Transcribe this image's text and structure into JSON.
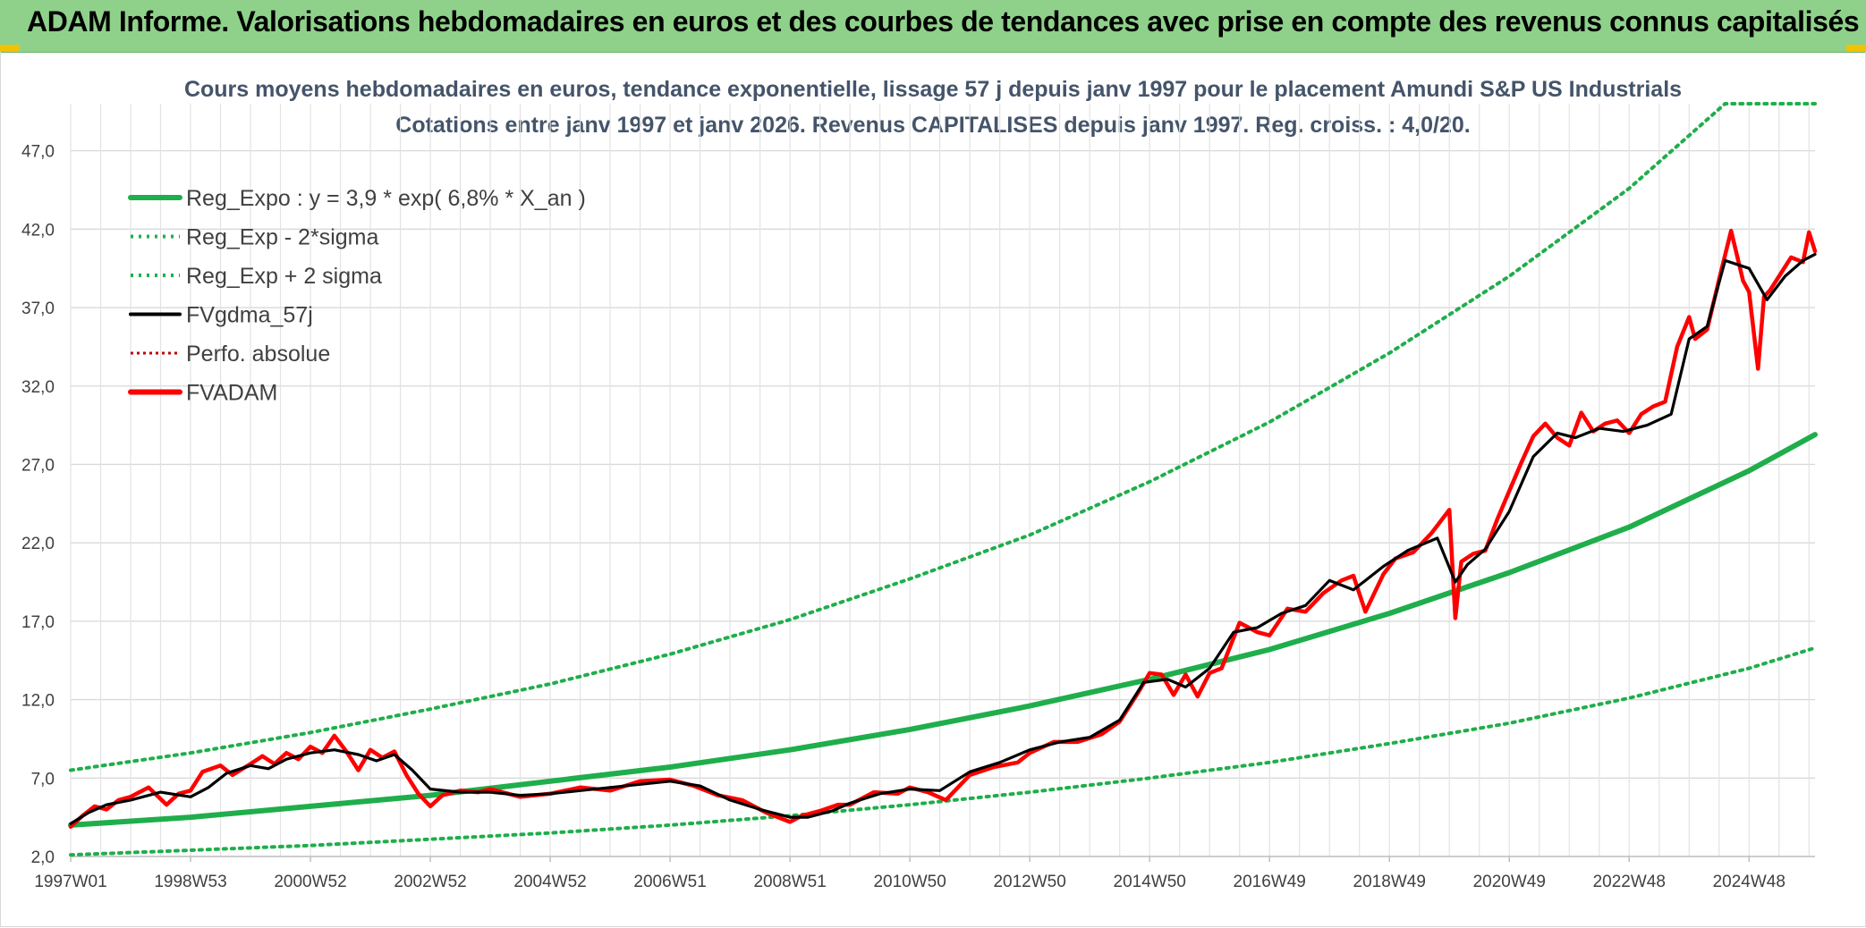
{
  "header": {
    "title": "ADAM Informe. Valorisations hebdomadaires en euros et des courbes de tendances avec prise en compte des revenus connus capitalisés"
  },
  "colors": {
    "header_bg": "#8fd18a",
    "reg_expo": "#1fae4b",
    "fvgdma": "#000000",
    "fvadam": "#ff0000",
    "perfo": "#c00000"
  },
  "chart_data": {
    "type": "line",
    "title_line1": "Cours moyens hebdomadaires en euros, tendance exponentielle, lissage 57 j depuis janv 1997 pour le placement Amundi S&P US Industrials",
    "title_line2": "Cotations entre janv 1997 et janv 2026. Revenus CAPITALISES depuis janv 1997. Reg. croiss. : 4,0/20.",
    "ylim": [
      2,
      50
    ],
    "y_ticks": [
      "2,0",
      "7,0",
      "12,0",
      "17,0",
      "22,0",
      "27,0",
      "32,0",
      "37,0",
      "42,0",
      "47,0"
    ],
    "y_tick_values": [
      2,
      7,
      12,
      17,
      22,
      27,
      32,
      37,
      42,
      47
    ],
    "x_range": [
      1997.0,
      2026.1
    ],
    "x_ticks": [
      "1997W01",
      "1998W53",
      "2000W52",
      "2002W52",
      "2004W52",
      "2006W51",
      "2008W51",
      "2010W50",
      "2012W50",
      "2014W50",
      "2016W49",
      "2018W49",
      "2020W49",
      "2022W48",
      "2024W48"
    ],
    "x_tick_values": [
      1997.0,
      1999.0,
      2001.0,
      2003.0,
      2005.0,
      2007.0,
      2009.0,
      2011.0,
      2013.0,
      2015.0,
      2017.0,
      2019.0,
      2021.0,
      2023.0,
      2025.0
    ],
    "grid": true,
    "legend_position": "top-left",
    "legend": [
      {
        "label": "Reg_Expo : y = 3,9 * exp( 6,8% *  X_an )",
        "color": "#1fae4b",
        "style": "solid-thick"
      },
      {
        "label": "Reg_Exp - 2*sigma",
        "color": "#1fae4b",
        "style": "dotted"
      },
      {
        "label": "Reg_Exp + 2 sigma",
        "color": "#1fae4b",
        "style": "dotted"
      },
      {
        "label": "FVgdma_57j",
        "color": "#000000",
        "style": "solid"
      },
      {
        "label": "Perfo. absolue",
        "color": "#c00000",
        "style": "dotted"
      },
      {
        "label": "FVADAM",
        "color": "#ff0000",
        "style": "solid-thick"
      }
    ],
    "series": [
      {
        "name": "Reg_Expo : y = 3,9 * exp( 6,8% *  X_an )",
        "x": [
          1997.0,
          1999.0,
          2001.0,
          2003.0,
          2005.0,
          2007.0,
          2009.0,
          2011.0,
          2013.0,
          2015.0,
          2017.0,
          2019.0,
          2021.0,
          2023.0,
          2025.0,
          2026.1
        ],
        "values": [
          4.0,
          4.5,
          5.2,
          5.9,
          6.8,
          7.7,
          8.8,
          10.1,
          11.6,
          13.3,
          15.2,
          17.5,
          20.1,
          23.0,
          26.6,
          28.9
        ]
      },
      {
        "name": "Reg_Exp - 2*sigma",
        "x": [
          1997.0,
          1999.0,
          2001.0,
          2003.0,
          2005.0,
          2007.0,
          2009.0,
          2011.0,
          2013.0,
          2015.0,
          2017.0,
          2019.0,
          2021.0,
          2023.0,
          2025.0,
          2026.1
        ],
        "values": [
          2.1,
          2.4,
          2.7,
          3.1,
          3.5,
          4.0,
          4.6,
          5.3,
          6.1,
          7.0,
          8.0,
          9.2,
          10.5,
          12.1,
          14.0,
          15.3
        ]
      },
      {
        "name": "Reg_Exp + 2 sigma",
        "x": [
          1997.0,
          1999.0,
          2001.0,
          2003.0,
          2005.0,
          2007.0,
          2009.0,
          2011.0,
          2013.0,
          2015.0,
          2017.0,
          2019.0,
          2021.0,
          2023.0,
          2024.6,
          2025.0,
          2026.1
        ],
        "values": [
          7.5,
          8.6,
          9.9,
          11.4,
          13.0,
          14.9,
          17.1,
          19.7,
          22.5,
          25.9,
          29.7,
          34.1,
          39.0,
          44.6,
          50.0,
          50.0,
          50.0
        ]
      },
      {
        "name": "FVgdma_57j",
        "x": [
          1997.0,
          1997.3,
          1997.6,
          1998.0,
          1998.5,
          1999.0,
          1999.3,
          1999.6,
          2000.0,
          2000.3,
          2000.6,
          2001.0,
          2001.4,
          2001.8,
          2002.1,
          2002.4,
          2002.7,
          2003.0,
          2003.5,
          2004.0,
          2004.5,
          2005.0,
          2005.5,
          2006.0,
          2006.5,
          2007.0,
          2007.5,
          2008.0,
          2008.5,
          2009.0,
          2009.3,
          2009.7,
          2010.0,
          2010.5,
          2011.0,
          2011.5,
          2012.0,
          2012.5,
          2013.0,
          2013.5,
          2014.0,
          2014.5,
          2014.9,
          2015.3,
          2015.6,
          2016.0,
          2016.4,
          2016.8,
          2017.2,
          2017.6,
          2018.0,
          2018.4,
          2018.9,
          2019.3,
          2019.8,
          2020.1,
          2020.3,
          2020.6,
          2021.0,
          2021.4,
          2021.8,
          2022.1,
          2022.5,
          2022.9,
          2023.3,
          2023.7,
          2024.0,
          2024.3,
          2024.6,
          2025.0,
          2025.3,
          2025.6,
          2025.9,
          2026.1
        ],
        "values": [
          4.1,
          4.8,
          5.3,
          5.6,
          6.1,
          5.8,
          6.4,
          7.3,
          7.8,
          7.6,
          8.2,
          8.6,
          8.8,
          8.5,
          8.1,
          8.5,
          7.5,
          6.3,
          6.1,
          6.1,
          5.9,
          6.0,
          6.2,
          6.4,
          6.6,
          6.8,
          6.5,
          5.6,
          5.0,
          4.5,
          4.5,
          4.9,
          5.4,
          6.0,
          6.3,
          6.2,
          7.4,
          8.0,
          8.8,
          9.3,
          9.6,
          10.7,
          13.1,
          13.3,
          12.8,
          14.0,
          16.3,
          16.6,
          17.5,
          18.0,
          19.6,
          19.0,
          20.5,
          21.5,
          22.3,
          19.5,
          20.6,
          21.6,
          24.0,
          27.5,
          29.0,
          28.7,
          29.3,
          29.1,
          29.5,
          30.2,
          35.0,
          35.8,
          40.0,
          39.5,
          37.5,
          39.0,
          40.0,
          40.4
        ]
      },
      {
        "name": "FVADAM",
        "x": [
          1997.0,
          1997.2,
          1997.4,
          1997.6,
          1997.8,
          1998.0,
          1998.3,
          1998.6,
          1998.8,
          1999.0,
          1999.2,
          1999.5,
          1999.7,
          2000.0,
          2000.2,
          2000.4,
          2000.6,
          2000.8,
          2001.0,
          2001.2,
          2001.4,
          2001.6,
          2001.8,
          2002.0,
          2002.2,
          2002.4,
          2002.6,
          2002.8,
          2003.0,
          2003.2,
          2003.5,
          2003.8,
          2004.0,
          2004.5,
          2005.0,
          2005.5,
          2006.0,
          2006.5,
          2007.0,
          2007.4,
          2007.8,
          2008.2,
          2008.6,
          2009.0,
          2009.2,
          2009.5,
          2009.8,
          2010.0,
          2010.4,
          2010.8,
          2011.0,
          2011.3,
          2011.6,
          2012.0,
          2012.4,
          2012.8,
          2013.0,
          2013.4,
          2013.8,
          2014.2,
          2014.5,
          2014.8,
          2015.0,
          2015.2,
          2015.4,
          2015.6,
          2015.8,
          2016.0,
          2016.2,
          2016.5,
          2016.8,
          2017.0,
          2017.3,
          2017.6,
          2017.9,
          2018.2,
          2018.4,
          2018.6,
          2018.9,
          2019.1,
          2019.4,
          2019.7,
          2020.0,
          2020.1,
          2020.2,
          2020.4,
          2020.6,
          2020.8,
          2021.0,
          2021.2,
          2021.4,
          2021.6,
          2021.8,
          2022.0,
          2022.2,
          2022.4,
          2022.6,
          2022.8,
          2023.0,
          2023.2,
          2023.4,
          2023.6,
          2023.8,
          2024.0,
          2024.1,
          2024.3,
          2024.5,
          2024.7,
          2024.9,
          2025.0,
          2025.15,
          2025.25,
          2025.35,
          2025.5,
          2025.7,
          2025.9,
          2026.0,
          2026.1
        ],
        "values": [
          3.9,
          4.6,
          5.2,
          5.0,
          5.6,
          5.8,
          6.4,
          5.3,
          6.0,
          6.2,
          7.4,
          7.8,
          7.2,
          7.9,
          8.4,
          7.9,
          8.6,
          8.2,
          9.0,
          8.6,
          9.7,
          8.7,
          7.5,
          8.8,
          8.3,
          8.7,
          7.2,
          6.0,
          5.2,
          5.9,
          6.2,
          6.1,
          6.3,
          5.8,
          6.0,
          6.4,
          6.2,
          6.8,
          6.9,
          6.5,
          5.9,
          5.6,
          4.8,
          4.2,
          4.6,
          4.9,
          5.3,
          5.3,
          6.1,
          6.0,
          6.4,
          6.1,
          5.6,
          7.2,
          7.7,
          8.0,
          8.6,
          9.3,
          9.3,
          9.8,
          10.6,
          12.4,
          13.7,
          13.6,
          12.3,
          13.6,
          12.2,
          13.7,
          14.0,
          16.9,
          16.3,
          16.1,
          17.8,
          17.6,
          18.8,
          19.6,
          19.9,
          17.6,
          20.0,
          21.0,
          21.4,
          22.6,
          24.1,
          17.2,
          20.8,
          21.3,
          21.5,
          23.5,
          25.3,
          27.1,
          28.8,
          29.6,
          28.7,
          28.2,
          30.3,
          29.1,
          29.6,
          29.8,
          29.0,
          30.2,
          30.7,
          31.0,
          34.5,
          36.4,
          35.0,
          35.6,
          38.8,
          41.9,
          38.7,
          38.0,
          33.1,
          37.7,
          38.1,
          39.0,
          40.2,
          39.9,
          41.8,
          40.6
        ]
      }
    ]
  }
}
